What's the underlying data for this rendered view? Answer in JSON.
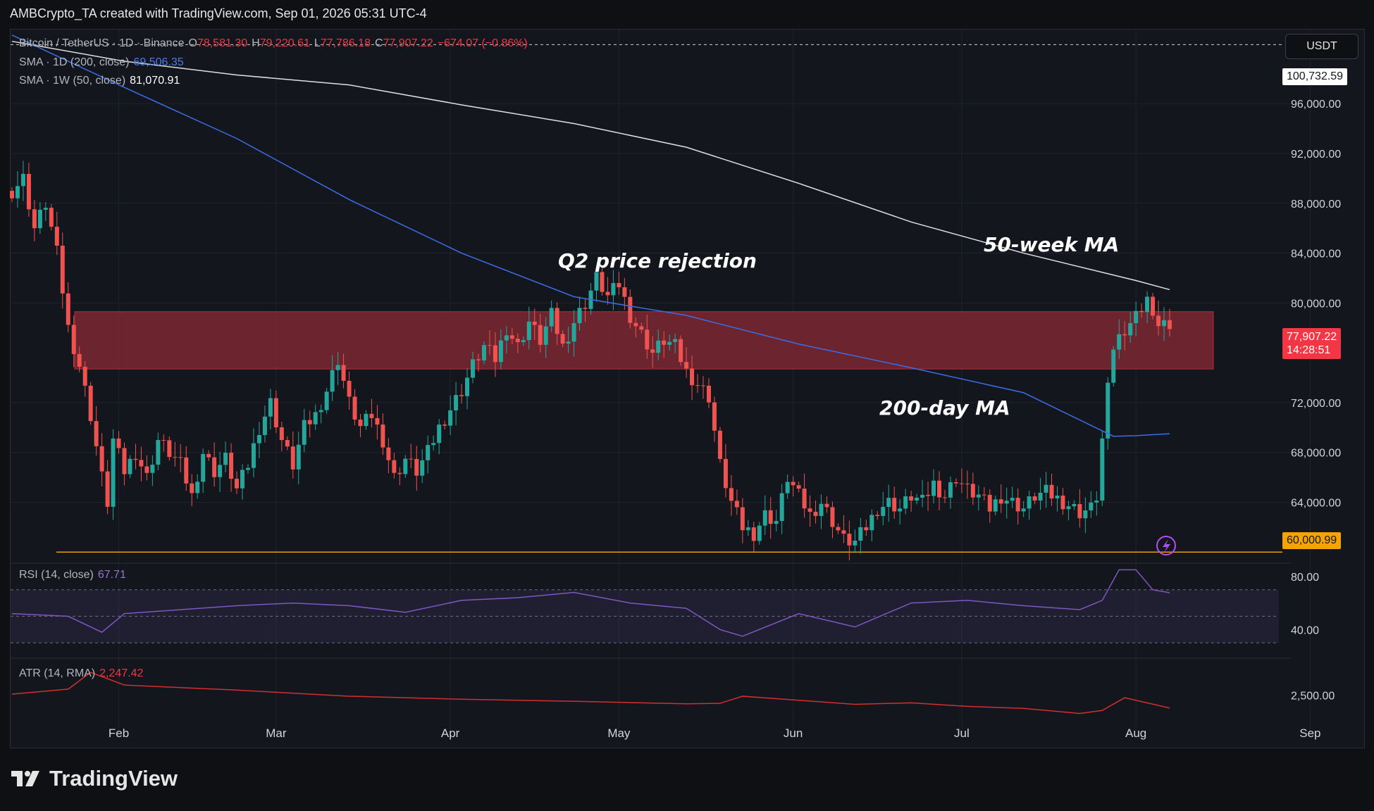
{
  "header": {
    "title": "AMBCrypto_TA created with TradingView.com, Sep 01, 2026 05:31 UTC-4"
  },
  "legend": {
    "symbol": "Bitcoin / TetherUS · 1D · Binance",
    "o_label": "O",
    "o": "78,581.30",
    "h_label": "H",
    "h": "79,220.61",
    "l_label": "L",
    "l": "77,786.18",
    "c_label": "C",
    "c": "77,907.22",
    "change": "−674.07 (−0.86%)",
    "sma200_label": "SMA · 1D (200, close)",
    "sma200_value": "69,506.35",
    "sma50w_label": "SMA · 1W (50, close)",
    "sma50w_value": "81,070.91",
    "rsi_label": "RSI (14, close)",
    "rsi_value": "67.71",
    "atr_label": "ATR (14, RMA)",
    "atr_value": "2,247.42"
  },
  "currency_button": "USDT",
  "price_tags": {
    "top": "100,732.59",
    "last": "77,907.22",
    "countdown": "14:28:51",
    "support": "60,000.99"
  },
  "annotations": {
    "rejection": "Q2 price rejection",
    "ma50w": "50-week MA",
    "ma200d": "200-day MA"
  },
  "brand": "TradingView",
  "colors": {
    "up": "#26a69a",
    "down": "#ef5350",
    "sma200": "#3a6ee8",
    "sma50w": "#e0e0e0",
    "zone": "#8a2a35",
    "support": "#e6a100",
    "rsi": "#7e57c2",
    "atr": "#d32f2f"
  },
  "chart_data": {
    "type": "candlestick",
    "y_axis_ticks": [
      "96,000.00",
      "92,000.00",
      "88,000.00",
      "84,000.00",
      "80,000.00",
      "72,000.00",
      "68,000.00",
      "64,000.00"
    ],
    "rsi_ticks": [
      "80.00",
      "40.00"
    ],
    "atr_ticks": [
      "2,500.00"
    ],
    "x_ticks": [
      "Feb",
      "Mar",
      "Apr",
      "May",
      "Jun",
      "Jul",
      "Aug",
      "Sep"
    ],
    "x_tick_days": [
      19,
      47,
      78,
      108,
      139,
      169,
      200,
      231
    ],
    "ylim": [
      59000,
      102000
    ],
    "resistance_zone": [
      74700,
      79300
    ],
    "support_level": 60000.99,
    "close_anchors": [
      [
        0,
        89000
      ],
      [
        2,
        90000
      ],
      [
        4,
        86000
      ],
      [
        6,
        88000
      ],
      [
        8,
        84000
      ],
      [
        10,
        78000
      ],
      [
        12,
        75000
      ],
      [
        14,
        71000
      ],
      [
        16,
        66000
      ],
      [
        17,
        64000
      ],
      [
        18,
        69000
      ],
      [
        20,
        66500
      ],
      [
        22,
        68000
      ],
      [
        24,
        66000
      ],
      [
        26,
        69000
      ],
      [
        28,
        68000
      ],
      [
        30,
        67000
      ],
      [
        32,
        64500
      ],
      [
        34,
        68000
      ],
      [
        36,
        66500
      ],
      [
        38,
        67500
      ],
      [
        40,
        65000
      ],
      [
        42,
        67000
      ],
      [
        44,
        70000
      ],
      [
        46,
        72000
      ],
      [
        48,
        69000
      ],
      [
        50,
        67000
      ],
      [
        52,
        70000
      ],
      [
        54,
        71000
      ],
      [
        56,
        73000
      ],
      [
        58,
        75500
      ],
      [
        60,
        72000
      ],
      [
        62,
        70000
      ],
      [
        64,
        71000
      ],
      [
        66,
        69000
      ],
      [
        68,
        66000
      ],
      [
        70,
        67500
      ],
      [
        72,
        66500
      ],
      [
        74,
        68000
      ],
      [
        76,
        70000
      ],
      [
        78,
        71500
      ],
      [
        80,
        73000
      ],
      [
        82,
        75000
      ],
      [
        84,
        76500
      ],
      [
        86,
        75500
      ],
      [
        88,
        78000
      ],
      [
        90,
        76500
      ],
      [
        92,
        78500
      ],
      [
        94,
        77000
      ],
      [
        96,
        79000
      ],
      [
        98,
        76500
      ],
      [
        100,
        78500
      ],
      [
        102,
        80000
      ],
      [
        104,
        82000
      ],
      [
        106,
        80500
      ],
      [
        108,
        81500
      ],
      [
        110,
        79000
      ],
      [
        112,
        77500
      ],
      [
        114,
        76000
      ],
      [
        116,
        77000
      ],
      [
        118,
        76500
      ],
      [
        120,
        74500
      ],
      [
        122,
        73500
      ],
      [
        124,
        72500
      ],
      [
        126,
        67000
      ],
      [
        128,
        64000
      ],
      [
        130,
        62000
      ],
      [
        132,
        61500
      ],
      [
        134,
        63000
      ],
      [
        136,
        62500
      ],
      [
        138,
        66000
      ],
      [
        140,
        64500
      ],
      [
        142,
        63000
      ],
      [
        144,
        64000
      ],
      [
        146,
        62500
      ],
      [
        148,
        61000
      ],
      [
        150,
        60800
      ],
      [
        152,
        62000
      ],
      [
        154,
        63500
      ],
      [
        156,
        64000
      ],
      [
        158,
        63500
      ],
      [
        160,
        64500
      ],
      [
        162,
        64000
      ],
      [
        164,
        65500
      ],
      [
        166,
        64500
      ],
      [
        168,
        66000
      ],
      [
        170,
        65000
      ],
      [
        172,
        64500
      ],
      [
        174,
        63500
      ],
      [
        176,
        64500
      ],
      [
        178,
        64000
      ],
      [
        180,
        63500
      ],
      [
        182,
        64500
      ],
      [
        184,
        64800
      ],
      [
        186,
        64300
      ],
      [
        188,
        63800
      ],
      [
        190,
        63200
      ],
      [
        192,
        63500
      ],
      [
        193,
        64500
      ],
      [
        194,
        69000
      ],
      [
        195,
        73000
      ],
      [
        196,
        76500
      ],
      [
        198,
        78000
      ],
      [
        200,
        79000
      ],
      [
        202,
        80500
      ],
      [
        203,
        78500
      ],
      [
        205,
        78500
      ],
      [
        206,
        77907
      ]
    ],
    "series": [
      {
        "name": "SMA · 1D (200, close)",
        "x": [
          0,
          20,
          40,
          60,
          80,
          100,
          120,
          140,
          160,
          180,
          196,
          200,
          206
        ],
        "y": [
          101500,
          97300,
          93200,
          88300,
          84000,
          80500,
          79000,
          76700,
          74800,
          72800,
          69300,
          69350,
          69506
        ]
      },
      {
        "name": "SMA · 1W (50, close)",
        "x": [
          0,
          20,
          40,
          60,
          80,
          100,
          120,
          140,
          160,
          180,
          200,
          206
        ],
        "y": [
          101000,
          99400,
          98300,
          97500,
          95900,
          94400,
          92500,
          89600,
          86500,
          84000,
          81800,
          81070
        ]
      },
      {
        "name": "RSI (14, close)",
        "x": [
          0,
          10,
          16,
          20,
          30,
          40,
          50,
          60,
          70,
          80,
          90,
          100,
          110,
          120,
          126,
          130,
          140,
          150,
          160,
          170,
          180,
          190,
          194,
          197,
          200,
          203,
          206
        ],
        "y": [
          52,
          50,
          38,
          52,
          55,
          58,
          60,
          58,
          53,
          62,
          64,
          68,
          60,
          56,
          40,
          35,
          52,
          42,
          60,
          62,
          58,
          55,
          62,
          85,
          85,
          70,
          67.71
        ]
      },
      {
        "name": "ATR (14, RMA)",
        "x": [
          0,
          10,
          14,
          20,
          40,
          60,
          80,
          100,
          120,
          126,
          130,
          140,
          150,
          160,
          170,
          180,
          190,
          194,
          198,
          206
        ],
        "y": [
          2520,
          2620,
          2950,
          2700,
          2600,
          2480,
          2420,
          2380,
          2330,
          2340,
          2480,
          2400,
          2320,
          2350,
          2280,
          2240,
          2140,
          2200,
          2450,
          2247
        ]
      }
    ]
  }
}
